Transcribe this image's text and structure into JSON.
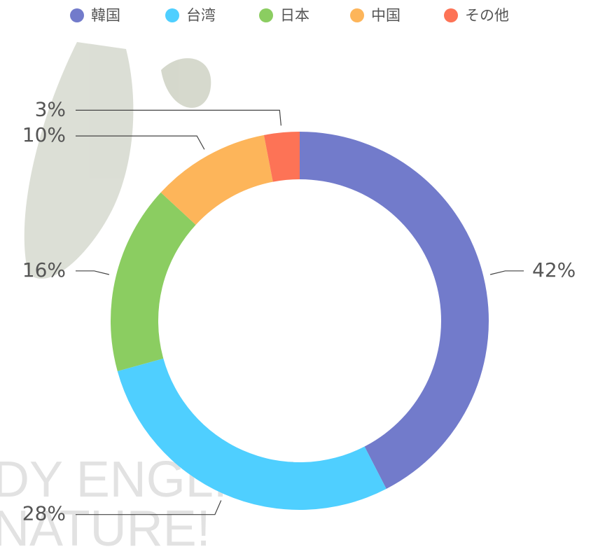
{
  "chart_data": {
    "type": "donut",
    "categories": [
      "韓国",
      "台湾",
      "日本",
      "中国",
      "その他"
    ],
    "values": [
      42,
      28,
      16,
      10,
      3
    ],
    "value_labels": [
      "42%",
      "28%",
      "16%",
      "10%",
      "3%"
    ],
    "colors": [
      "#727bcb",
      "#4fcfff",
      "#8bcd61",
      "#fdb55a",
      "#fd7356"
    ],
    "legend": "top"
  },
  "watermark": [
    "DY ENGLISH",
    "NATURE!"
  ]
}
